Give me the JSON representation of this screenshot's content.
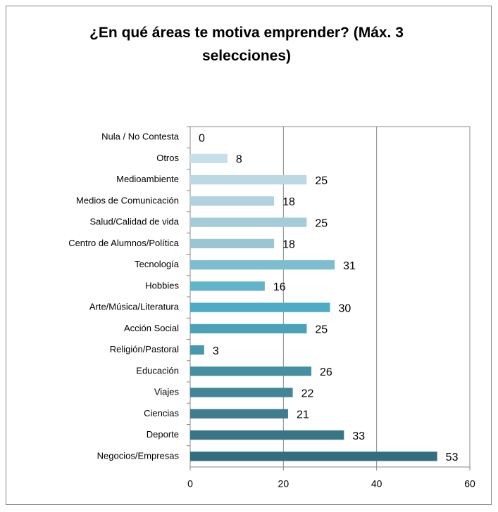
{
  "chart_data": {
    "type": "barh",
    "title": "¿En qué áreas te motiva emprender? (Máx. 3 selecciones)",
    "categories": [
      "Nula / No Contesta",
      "Otros",
      "Medioambiente",
      "Medios de Comunicación",
      "Salud/Calidad de vida",
      "Centro de Alumnos/Política",
      "Tecnología",
      "Hobbies",
      "Arte/Música/Literatura",
      "Acción Social",
      "Religión/Pastoral",
      "Educación",
      "Viajes",
      "Ciencias",
      "Deporte",
      "Negocios/Empresas"
    ],
    "values": [
      0,
      8,
      25,
      18,
      25,
      18,
      31,
      16,
      30,
      25,
      3,
      26,
      22,
      21,
      33,
      53
    ],
    "colors": [
      "#cfe4ec",
      "#c6dfe8",
      "#bcd9e3",
      "#b1d2de",
      "#a6cbd8",
      "#9bc5d3",
      "#7ebdd0",
      "#63b3cb",
      "#4eabc5",
      "#4aa1b8",
      "#4898ad",
      "#458fa3",
      "#428598",
      "#3e7d8e",
      "#3a7585",
      "#356d7d"
    ],
    "xlim": [
      0,
      60
    ],
    "xticks": [
      0,
      20,
      40,
      60
    ],
    "grid": true
  }
}
